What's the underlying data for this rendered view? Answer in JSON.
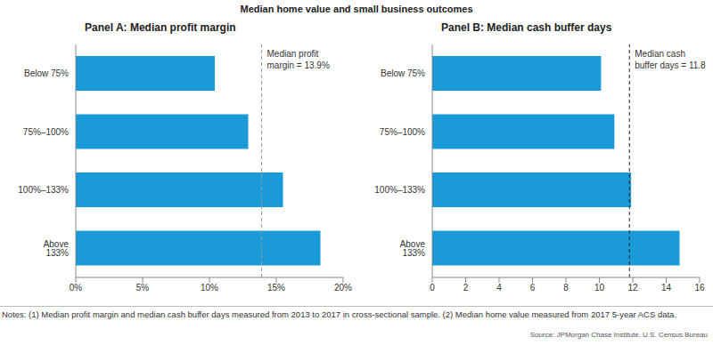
{
  "title": "Median home value and small business outcomes",
  "notes": "Notes: (1) Median profit margin and median cash buffer days measured from 2013 to 2017 in cross-sectional sample. (2) Median home value measured from 2017 5-year ACS data.",
  "source": "Source: JPMorgan Chase Institute, U.S. Census Bureau",
  "chart_data": [
    {
      "type": "bar",
      "title": "Panel A: Median profit margin",
      "orientation": "horizontal",
      "categories": [
        "Below 75%",
        "75%–100%",
        "100%–133%",
        "Above 133%"
      ],
      "values": [
        10.4,
        12.9,
        15.5,
        18.3
      ],
      "color": "#1a9bd7",
      "xlim": [
        0,
        20
      ],
      "xticks": [
        {
          "value": 0,
          "label": "0%"
        },
        {
          "value": 5,
          "label": "5%"
        },
        {
          "value": 10,
          "label": "10%"
        },
        {
          "value": 15,
          "label": "15%"
        },
        {
          "value": 20,
          "label": "20%"
        }
      ],
      "grid": false,
      "reference_line": {
        "value": 13.9,
        "label": [
          "Median profit",
          "margin = 13.9%"
        ],
        "color": "#999999"
      }
    },
    {
      "type": "bar",
      "title": "Panel B: Median cash buffer days",
      "orientation": "horizontal",
      "categories": [
        "Below 75%",
        "75%–100%",
        "100%–133%",
        "Above 133%"
      ],
      "values": [
        10.1,
        10.9,
        11.9,
        14.8
      ],
      "color": "#1a9bd7",
      "xlim": [
        0,
        16
      ],
      "xticks": [
        0,
        2,
        4,
        6,
        8,
        10,
        12,
        14,
        16
      ],
      "grid": false,
      "reference_line": {
        "value": 11.8,
        "label": [
          "Median cash",
          "buffer days = 11.8"
        ],
        "color": "#222222"
      }
    }
  ]
}
